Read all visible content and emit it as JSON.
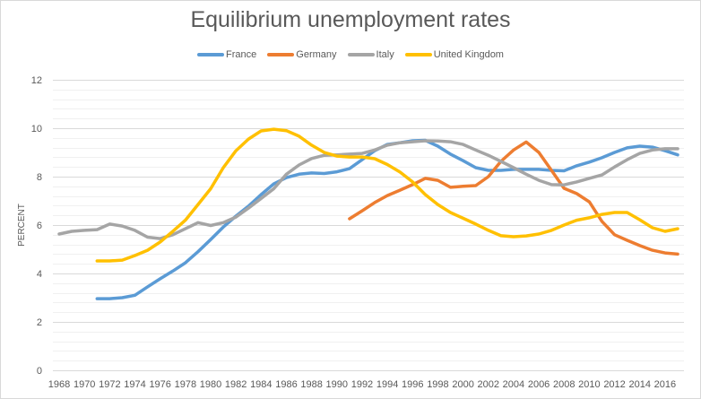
{
  "chart_data": {
    "type": "line",
    "title": "Equilibrium unemployment rates",
    "xlabel": "",
    "ylabel": "PERCENT",
    "ylim": [
      0,
      12
    ],
    "yticks": [
      0,
      2,
      4,
      6,
      8,
      10,
      12
    ],
    "ytick_labels": [
      "0",
      "2",
      "4",
      "6",
      "8",
      "10",
      "12"
    ],
    "minor_grid_step": 0.4,
    "grid": true,
    "legend_position": "top",
    "x": [
      1968,
      1969,
      1970,
      1971,
      1972,
      1973,
      1974,
      1975,
      1976,
      1977,
      1978,
      1979,
      1980,
      1981,
      1982,
      1983,
      1984,
      1985,
      1986,
      1987,
      1988,
      1989,
      1990,
      1991,
      1992,
      1993,
      1994,
      1995,
      1996,
      1997,
      1998,
      1999,
      2000,
      2001,
      2002,
      2003,
      2004,
      2005,
      2006,
      2007,
      2008,
      2009,
      2010,
      2011,
      2012,
      2013,
      2014,
      2015,
      2016,
      2017
    ],
    "xtick_labels": [
      "1968",
      "1970",
      "1972",
      "1974",
      "1976",
      "1978",
      "1980",
      "1982",
      "1984",
      "1986",
      "1988",
      "1990",
      "1992",
      "1994",
      "1996",
      "1998",
      "2000",
      "2002",
      "2004",
      "2006",
      "2008",
      "2010",
      "2012",
      "2014",
      "2016"
    ],
    "series": [
      {
        "name": "France",
        "color": "#5b9bd5",
        "values": [
          null,
          null,
          null,
          2.96,
          2.96,
          3.0,
          3.1,
          3.45,
          3.78,
          4.1,
          4.44,
          4.9,
          5.4,
          5.92,
          6.37,
          6.78,
          7.26,
          7.7,
          7.96,
          8.1,
          8.15,
          8.13,
          8.2,
          8.33,
          8.7,
          9.07,
          9.33,
          9.4,
          9.48,
          9.5,
          9.26,
          8.93,
          8.66,
          8.37,
          8.26,
          8.26,
          8.3,
          8.3,
          8.3,
          8.26,
          8.24,
          8.45,
          8.6,
          8.78,
          9.0,
          9.19,
          9.26,
          9.22,
          9.07,
          8.9
        ]
      },
      {
        "name": "Germany",
        "color": "#ed7d31",
        "values": [
          null,
          null,
          null,
          null,
          null,
          null,
          null,
          null,
          null,
          null,
          null,
          null,
          null,
          null,
          null,
          null,
          null,
          null,
          null,
          null,
          null,
          null,
          null,
          6.26,
          6.59,
          6.93,
          7.22,
          7.44,
          7.67,
          7.93,
          7.85,
          7.56,
          7.6,
          7.63,
          8.0,
          8.63,
          9.1,
          9.43,
          9.0,
          8.26,
          7.52,
          7.3,
          6.96,
          6.15,
          5.6,
          5.37,
          5.15,
          4.96,
          4.85,
          4.8
        ]
      },
      {
        "name": "Italy",
        "color": "#a5a5a5",
        "values": [
          5.63,
          5.74,
          5.78,
          5.81,
          6.04,
          5.96,
          5.78,
          5.5,
          5.44,
          5.6,
          5.85,
          6.1,
          5.98,
          6.1,
          6.33,
          6.7,
          7.1,
          7.5,
          8.1,
          8.48,
          8.75,
          8.88,
          8.9,
          8.93,
          8.96,
          9.1,
          9.3,
          9.4,
          9.44,
          9.48,
          9.47,
          9.44,
          9.33,
          9.1,
          8.88,
          8.63,
          8.37,
          8.1,
          7.85,
          7.67,
          7.66,
          7.78,
          7.93,
          8.07,
          8.4,
          8.7,
          8.96,
          9.1,
          9.15,
          9.15
        ]
      },
      {
        "name": "United Kingdom",
        "color": "#ffc000",
        "values": [
          null,
          null,
          null,
          4.52,
          4.52,
          4.55,
          4.74,
          4.96,
          5.3,
          5.74,
          6.2,
          6.85,
          7.5,
          8.37,
          9.07,
          9.55,
          9.89,
          9.96,
          9.9,
          9.67,
          9.3,
          9.0,
          8.85,
          8.81,
          8.81,
          8.74,
          8.5,
          8.19,
          7.78,
          7.26,
          6.85,
          6.52,
          6.28,
          6.04,
          5.78,
          5.56,
          5.52,
          5.55,
          5.63,
          5.78,
          6.0,
          6.2,
          6.3,
          6.44,
          6.52,
          6.52,
          6.22,
          5.89,
          5.74,
          5.85
        ]
      }
    ]
  }
}
